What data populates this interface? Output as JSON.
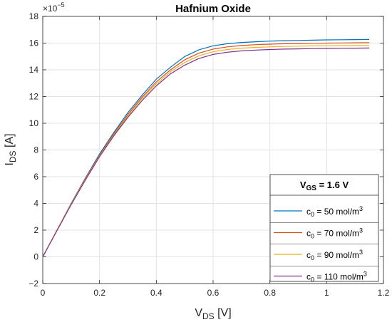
{
  "chart_data": {
    "type": "line",
    "title": "Hafnium Oxide",
    "xlabel": {
      "main": "V",
      "sub": "DS",
      "unit": " [V]"
    },
    "ylabel": {
      "main": "I",
      "sub": "DS",
      "unit": " [A]"
    },
    "y_exponent": {
      "base": "×10",
      "exp": "−5"
    },
    "xlim": [
      0,
      1.2
    ],
    "ylim": [
      -2,
      18
    ],
    "x_ticks": [
      0,
      0.2,
      0.4,
      0.6,
      0.8,
      1,
      1.2
    ],
    "x_tick_labels": [
      "0",
      "0.2",
      "0.4",
      "0.6",
      "0.8",
      "1",
      "1.2"
    ],
    "y_ticks": [
      -2,
      0,
      2,
      4,
      6,
      8,
      10,
      12,
      14,
      16,
      18
    ],
    "y_tick_labels": [
      "−2",
      "0",
      "2",
      "4",
      "6",
      "8",
      "10",
      "12",
      "14",
      "16",
      "18"
    ],
    "grid": true,
    "legend_position": "bottom-right",
    "legend_title": {
      "main": "V",
      "sub": "GS",
      "rest": " = 1.6 V"
    },
    "x": [
      0,
      0.05,
      0.1,
      0.15,
      0.2,
      0.25,
      0.3,
      0.35,
      0.4,
      0.45,
      0.5,
      0.55,
      0.6,
      0.65,
      0.7,
      0.75,
      0.8,
      0.85,
      0.9,
      0.95,
      1.0,
      1.05,
      1.1,
      1.15
    ],
    "series": [
      {
        "label": {
          "main": "c",
          "sub": "0",
          "rest": " = 50 mol/m",
          "sup": "3"
        },
        "color": "#0072BD",
        "values": [
          0,
          2.0,
          4.0,
          5.9,
          7.7,
          9.3,
          10.8,
          12.1,
          13.3,
          14.2,
          15.0,
          15.5,
          15.8,
          15.95,
          16.05,
          16.1,
          16.15,
          16.18,
          16.2,
          16.22,
          16.24,
          16.25,
          16.26,
          16.27
        ]
      },
      {
        "label": {
          "main": "c",
          "sub": "0",
          "rest": " = 70 mol/m",
          "sup": "3"
        },
        "color": "#D95319",
        "values": [
          0,
          2.0,
          3.95,
          5.85,
          7.6,
          9.2,
          10.65,
          11.95,
          13.1,
          14.0,
          14.75,
          15.25,
          15.55,
          15.72,
          15.82,
          15.88,
          15.92,
          15.95,
          15.97,
          15.99,
          16.0,
          16.01,
          16.02,
          16.03
        ]
      },
      {
        "label": {
          "main": "c",
          "sub": "0",
          "rest": " = 90 mol/m",
          "sup": "3"
        },
        "color": "#EDB120",
        "values": [
          0,
          2.0,
          3.95,
          5.8,
          7.55,
          9.1,
          10.55,
          11.85,
          12.95,
          13.85,
          14.55,
          15.05,
          15.35,
          15.52,
          15.62,
          15.68,
          15.72,
          15.75,
          15.77,
          15.79,
          15.8,
          15.81,
          15.82,
          15.83
        ]
      },
      {
        "label": {
          "main": "c",
          "sub": "0",
          "rest": " = 110 mol/m",
          "sup": "3"
        },
        "color": "#7E2F8E",
        "values": [
          0,
          1.95,
          3.9,
          5.75,
          7.5,
          9.05,
          10.45,
          11.7,
          12.8,
          13.7,
          14.35,
          14.85,
          15.15,
          15.32,
          15.42,
          15.48,
          15.52,
          15.55,
          15.57,
          15.59,
          15.6,
          15.61,
          15.62,
          15.63
        ]
      }
    ]
  }
}
